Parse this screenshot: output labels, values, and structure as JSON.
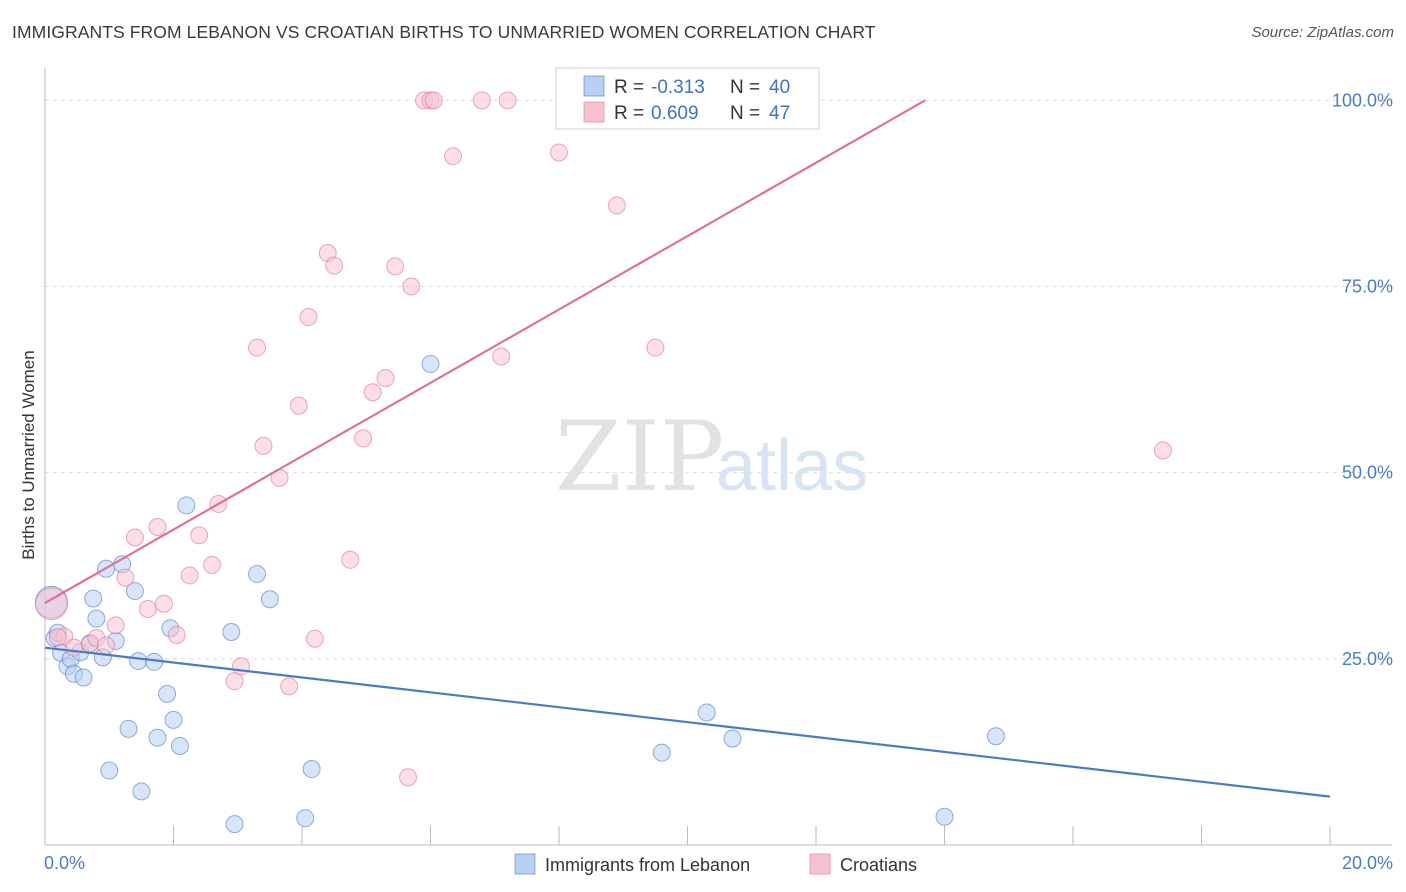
{
  "title": "IMMIGRANTS FROM LEBANON VS CROATIAN BIRTHS TO UNMARRIED WOMEN CORRELATION CHART",
  "source": "Source: ZipAtlas.com",
  "watermark": {
    "zip": "ZIP",
    "atlas": "atlas"
  },
  "chart_data": {
    "type": "scatter",
    "title": "IMMIGRANTS FROM LEBANON VS CROATIAN BIRTHS TO UNMARRIED WOMEN CORRELATION CHART",
    "xlabel": "",
    "ylabel": "Births to Unmarried Women",
    "xlim": [
      0,
      20
    ],
    "ylim": [
      0,
      103
    ],
    "x_tick_labels": [
      {
        "value": 0,
        "label": "0.0%"
      },
      {
        "value": 20,
        "label": "20.0%"
      }
    ],
    "y_tick_labels": [
      {
        "value": 25,
        "label": "25.0%"
      },
      {
        "value": 50,
        "label": "50.0%"
      },
      {
        "value": 75,
        "label": "75.0%"
      },
      {
        "value": 100,
        "label": "100.0%"
      }
    ],
    "legend_position": "bottom",
    "series": [
      {
        "name": "Immigrants from Lebanon",
        "color": "#4a7cc4",
        "fill": "#b8d0f2",
        "R": "-0.313",
        "N": "40",
        "trend": {
          "x": [
            0,
            20
          ],
          "y": [
            26.5,
            6.5
          ]
        },
        "points": [
          [
            0.1,
            32.6
          ],
          [
            0.15,
            27.8
          ],
          [
            0.2,
            28.5
          ],
          [
            0.25,
            25.8
          ],
          [
            0.35,
            24.0
          ],
          [
            0.4,
            25.0
          ],
          [
            0.45,
            23.0
          ],
          [
            0.6,
            22.5
          ],
          [
            0.55,
            25.9
          ],
          [
            0.7,
            27.1
          ],
          [
            0.75,
            33.1
          ],
          [
            0.8,
            30.4
          ],
          [
            0.9,
            25.2
          ],
          [
            0.95,
            37.1
          ],
          [
            1.0,
            10.0
          ],
          [
            1.1,
            27.4
          ],
          [
            1.2,
            37.7
          ],
          [
            1.3,
            15.6
          ],
          [
            1.4,
            34.1
          ],
          [
            1.45,
            24.7
          ],
          [
            1.5,
            7.2
          ],
          [
            1.7,
            24.6
          ],
          [
            1.75,
            14.4
          ],
          [
            1.9,
            20.3
          ],
          [
            1.95,
            29.1
          ],
          [
            2.0,
            16.8
          ],
          [
            2.1,
            13.3
          ],
          [
            2.2,
            45.6
          ],
          [
            2.9,
            28.6
          ],
          [
            2.95,
            2.8
          ],
          [
            3.3,
            36.4
          ],
          [
            3.5,
            33.0
          ],
          [
            4.05,
            3.6
          ],
          [
            4.15,
            10.2
          ],
          [
            6.0,
            64.6
          ],
          [
            9.6,
            12.4
          ],
          [
            10.3,
            17.8
          ],
          [
            10.7,
            14.3
          ],
          [
            14.0,
            3.8
          ],
          [
            14.8,
            14.6
          ]
        ]
      },
      {
        "name": "Croatians",
        "color": "#e07099",
        "fill": "#f7c2d2",
        "R": "0.609",
        "N": "47",
        "trend": {
          "x": [
            0,
            13.7
          ],
          "y": [
            32.5,
            100
          ]
        },
        "points": [
          [
            0.1,
            32.4
          ],
          [
            0.3,
            28.0
          ],
          [
            0.45,
            26.5
          ],
          [
            0.7,
            27.0
          ],
          [
            0.8,
            27.8
          ],
          [
            0.95,
            26.8
          ],
          [
            1.1,
            29.5
          ],
          [
            1.25,
            35.9
          ],
          [
            1.4,
            41.3
          ],
          [
            1.6,
            31.7
          ],
          [
            1.75,
            42.7
          ],
          [
            1.85,
            32.4
          ],
          [
            2.05,
            28.2
          ],
          [
            2.25,
            36.2
          ],
          [
            2.4,
            41.6
          ],
          [
            2.6,
            37.6
          ],
          [
            2.7,
            45.8
          ],
          [
            2.95,
            22.0
          ],
          [
            3.05,
            24.0
          ],
          [
            3.3,
            66.8
          ],
          [
            3.4,
            53.6
          ],
          [
            3.65,
            49.3
          ],
          [
            3.8,
            21.3
          ],
          [
            3.95,
            59.0
          ],
          [
            4.1,
            70.9
          ],
          [
            4.2,
            27.7
          ],
          [
            4.4,
            79.5
          ],
          [
            4.5,
            77.8
          ],
          [
            4.75,
            38.3
          ],
          [
            4.95,
            54.6
          ],
          [
            5.1,
            60.8
          ],
          [
            5.3,
            62.7
          ],
          [
            5.45,
            77.7
          ],
          [
            5.65,
            9.1
          ],
          [
            5.7,
            75.0
          ],
          [
            5.9,
            100.0
          ],
          [
            6.0,
            100.0
          ],
          [
            6.05,
            100.0
          ],
          [
            6.35,
            92.5
          ],
          [
            6.8,
            100.0
          ],
          [
            7.2,
            100.0
          ],
          [
            7.1,
            65.6
          ],
          [
            8.0,
            93.0
          ],
          [
            8.9,
            85.9
          ],
          [
            9.5,
            66.8
          ],
          [
            17.4,
            53.0
          ],
          [
            0.2,
            27.9
          ]
        ]
      }
    ]
  },
  "legend": {
    "items": [
      {
        "label": "Immigrants from Lebanon"
      },
      {
        "label": "Croatians"
      }
    ]
  },
  "stats": {
    "r_label": "R =",
    "n_label": "N ="
  }
}
